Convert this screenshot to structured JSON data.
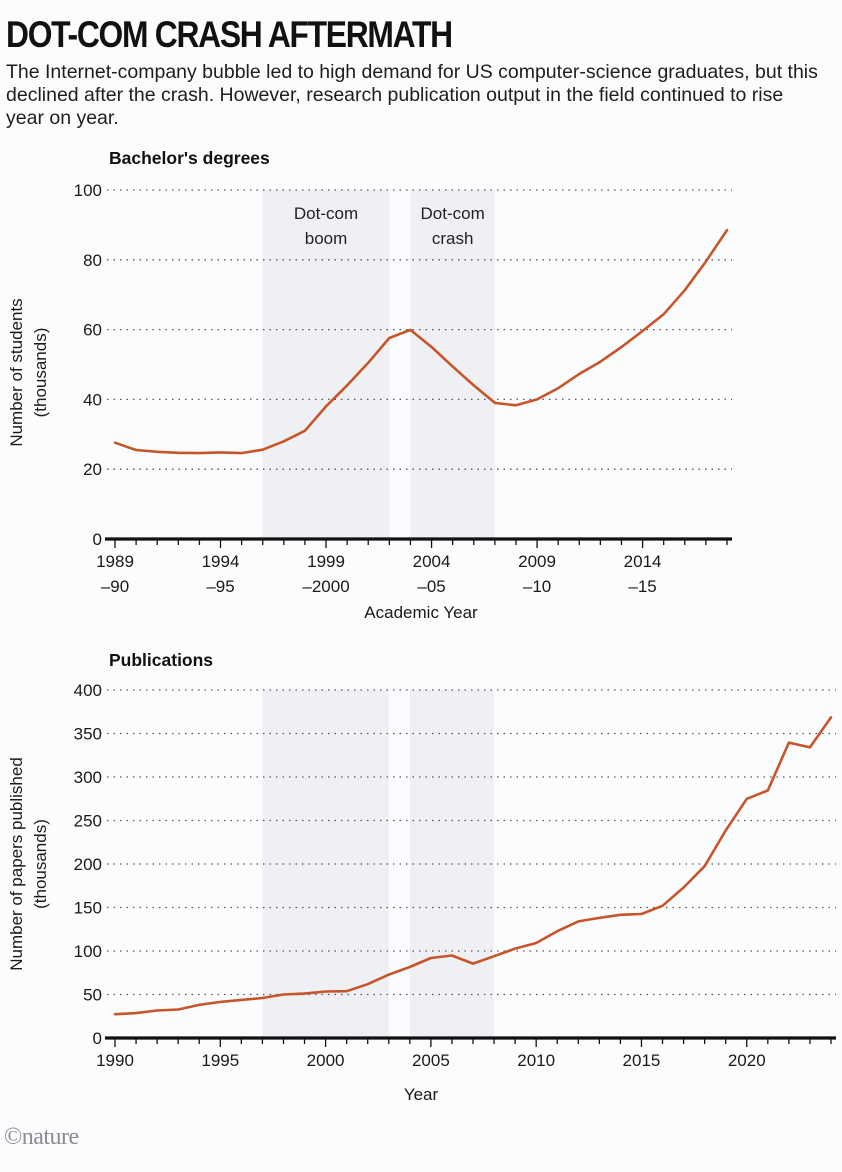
{
  "header": {
    "title": "DOT-COM CRASH AFTERMATH",
    "subtitle": "The Internet-company bubble led to high demand for US computer-science graduates, but this declined after the crash. However, research publication output in the field continued to rise year on year."
  },
  "footer": {
    "credit": "©nature"
  },
  "colors": {
    "line": "#c8552a",
    "band": "#eef0f3",
    "grid": "#555555",
    "axis": "#111111"
  },
  "chart_data": [
    {
      "type": "line",
      "title": "Bachelor's degrees",
      "xlabel": "Academic Year",
      "ylabel": [
        "Number of students",
        "(thousands)"
      ],
      "ylim": [
        0,
        100
      ],
      "yticks": [
        0,
        20,
        40,
        60,
        80,
        100
      ],
      "xlim": [
        1989,
        2018
      ],
      "xticks_minor_every": 1,
      "xtick_labels": [
        {
          "x": 1989,
          "line1": "1989",
          "line2": "–90"
        },
        {
          "x": 1994,
          "line1": "1994",
          "line2": "–95"
        },
        {
          "x": 1999,
          "line1": "1999",
          "line2": "–2000"
        },
        {
          "x": 2004,
          "line1": "2004",
          "line2": "–05"
        },
        {
          "x": 2009,
          "line1": "2009",
          "line2": "–10"
        },
        {
          "x": 2014,
          "line1": "2014",
          "line2": "–15"
        }
      ],
      "grid": "horizontal-dotted",
      "bands": [
        {
          "label_lines": [
            "Dot-com",
            "boom"
          ],
          "from": 1996,
          "to": 2002
        },
        {
          "label_lines": [
            "Dot-com",
            "crash"
          ],
          "from": 2003,
          "to": 2007
        }
      ],
      "series": [
        {
          "name": "Bachelor's degrees",
          "x": [
            1989,
            1990,
            1991,
            1992,
            1993,
            1994,
            1995,
            1996,
            1997,
            1998,
            1999,
            2000,
            2001,
            2002,
            2003,
            2004,
            2005,
            2006,
            2007,
            2008,
            2009,
            2010,
            2011,
            2012,
            2013,
            2014,
            2015,
            2016,
            2017,
            2018
          ],
          "values": [
            27.6,
            25.5,
            25.0,
            24.7,
            24.6,
            24.8,
            24.6,
            25.6,
            28.0,
            31.0,
            38.0,
            44.0,
            50.5,
            57.6,
            59.9,
            55.0,
            49.4,
            44.0,
            39.0,
            38.3,
            40.0,
            43.2,
            47.3,
            50.8,
            55.0,
            59.6,
            64.4,
            71.3,
            79.5,
            88.5
          ]
        }
      ]
    },
    {
      "type": "line",
      "title": "Publications",
      "xlabel": "Year",
      "ylabel": [
        "Number of papers published",
        "(thousands)"
      ],
      "ylim": [
        0,
        400
      ],
      "yticks": [
        0,
        50,
        100,
        150,
        200,
        250,
        300,
        350,
        400
      ],
      "xlim": [
        1990,
        2024
      ],
      "xticks_minor_every": 1,
      "xtick_labels": [
        {
          "x": 1990,
          "line1": "1990"
        },
        {
          "x": 1995,
          "line1": "1995"
        },
        {
          "x": 2000,
          "line1": "2000"
        },
        {
          "x": 2005,
          "line1": "2005"
        },
        {
          "x": 2010,
          "line1": "2010"
        },
        {
          "x": 2015,
          "line1": "2015"
        },
        {
          "x": 2020,
          "line1": "2020"
        }
      ],
      "grid": "horizontal-dotted",
      "bands": [
        {
          "label_lines": [],
          "from": 1997,
          "to": 2003
        },
        {
          "label_lines": [],
          "from": 2004,
          "to": 2008
        }
      ],
      "series": [
        {
          "name": "Publications",
          "x": [
            1990,
            1991,
            1992,
            1993,
            1994,
            1995,
            1996,
            1997,
            1998,
            1999,
            2000,
            2001,
            2002,
            2003,
            2004,
            2005,
            2006,
            2007,
            2008,
            2009,
            2010,
            2011,
            2012,
            2013,
            2014,
            2015,
            2016,
            2017,
            2018,
            2019,
            2020,
            2021,
            2022,
            2023,
            2024
          ],
          "values": [
            27.4,
            28.6,
            31.6,
            32.8,
            38.0,
            41.5,
            43.8,
            46.0,
            50.0,
            51.0,
            53.4,
            53.8,
            61.8,
            72.9,
            81.6,
            92.0,
            94.8,
            85.5,
            94.0,
            102.8,
            109.2,
            122.8,
            134.0,
            138.1,
            141.6,
            142.5,
            152.0,
            173.0,
            197.5,
            238.5,
            275.0,
            284.5,
            339.5,
            334.0,
            368.5
          ]
        }
      ]
    }
  ]
}
